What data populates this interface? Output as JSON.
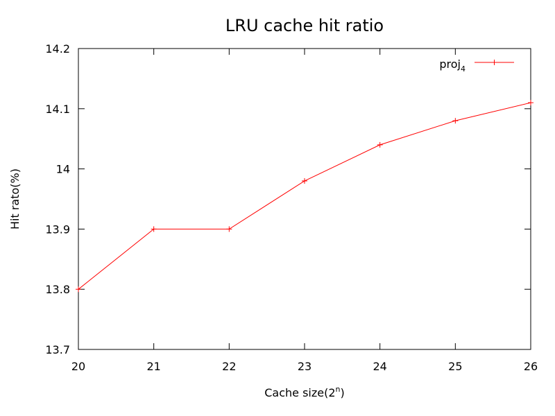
{
  "chart_data": {
    "type": "line",
    "title": "LRU cache hit ratio",
    "xlabel": "Cache size(2",
    "xlabel_sup": "n",
    "xlabel_end": ")",
    "ylabel": "Hit rato(%)",
    "x": [
      20,
      21,
      22,
      23,
      24,
      25,
      26
    ],
    "xlim": [
      20,
      26
    ],
    "ylim": [
      13.7,
      14.2
    ],
    "xticks": [
      "20",
      "21",
      "22",
      "23",
      "24",
      "25",
      "26"
    ],
    "yticks": [
      "13.7",
      "13.8",
      "13.9",
      "14",
      "14.1",
      "14.2"
    ],
    "ytick_values": [
      13.7,
      13.8,
      13.9,
      14.0,
      14.1,
      14.2
    ],
    "grid": false,
    "legend_position": "top-right",
    "series": [
      {
        "name": "proj",
        "name_sub": "4",
        "color": "#ff0000",
        "marker": "plus",
        "values": [
          13.8,
          13.9,
          13.9,
          13.98,
          14.04,
          14.08,
          14.11
        ]
      }
    ]
  }
}
